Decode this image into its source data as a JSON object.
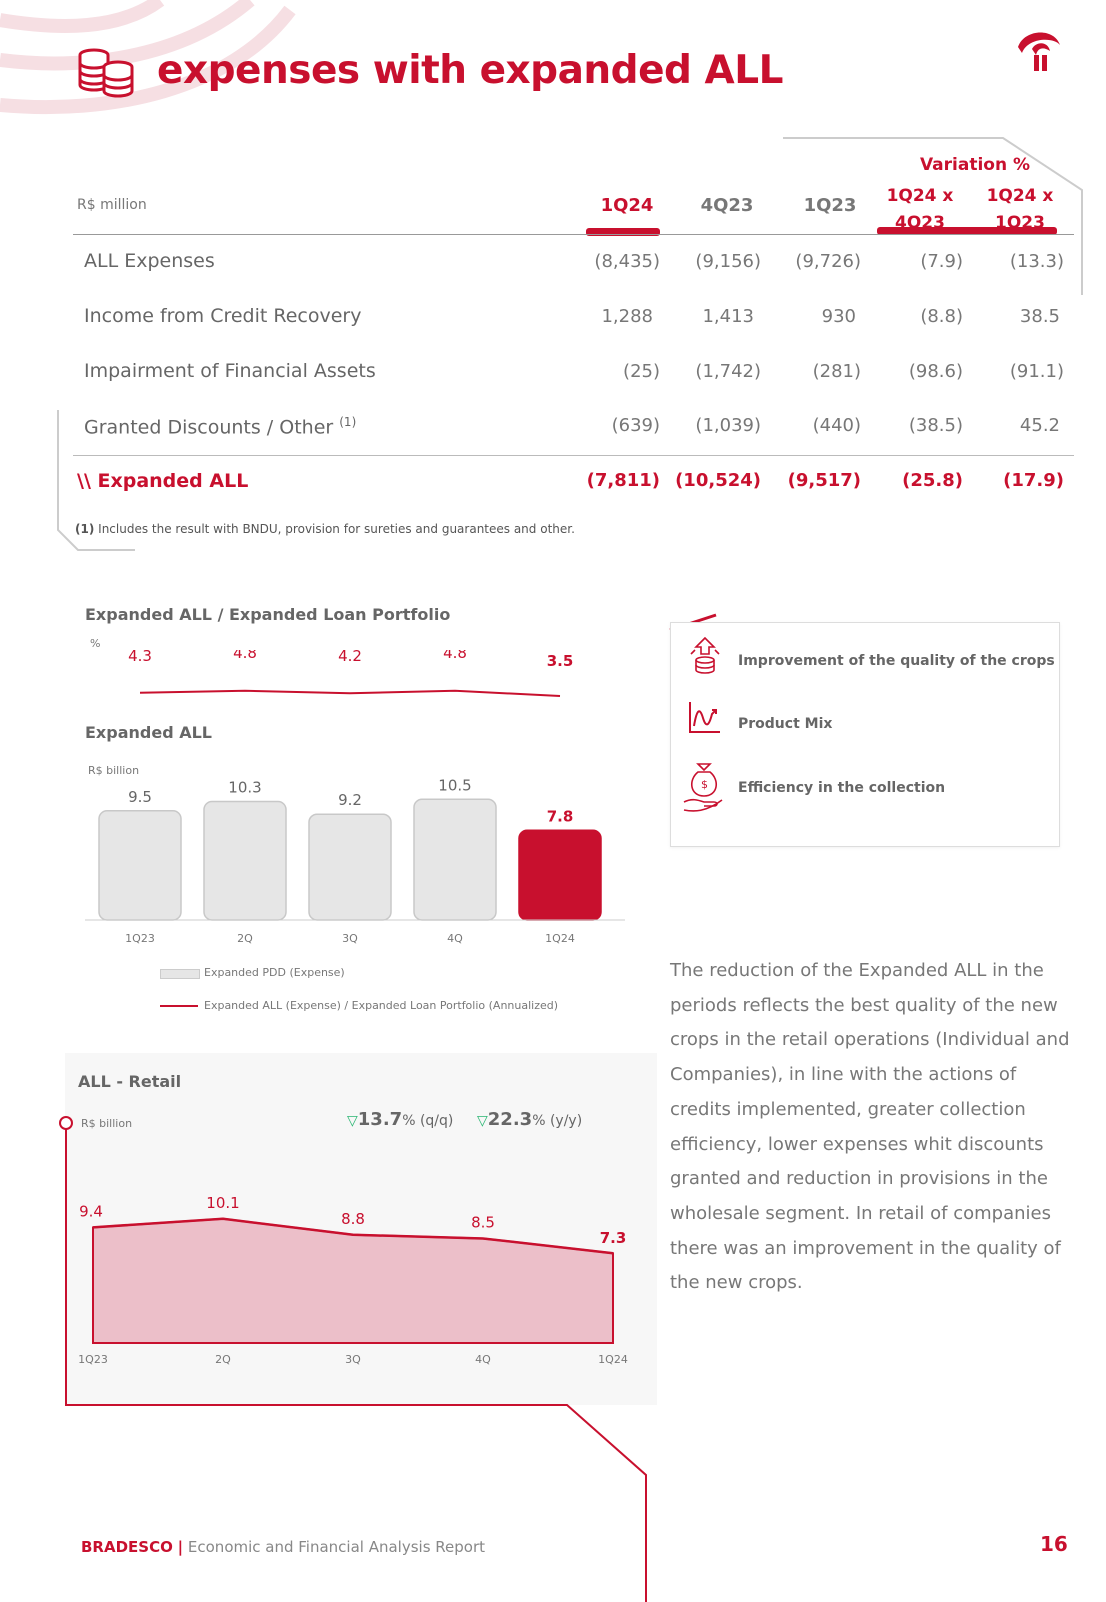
{
  "header": {
    "title": "expenses with expanded ALL"
  },
  "table": {
    "unit": "R$ million",
    "columns": [
      "1Q24",
      "4Q23",
      "1Q23"
    ],
    "variation_title": "Variation %",
    "variation_columns": [
      "1Q24 x 4Q23",
      "1Q24 x 1Q23"
    ],
    "variation_columns_lines": [
      [
        "1Q24 x",
        "4Q23"
      ],
      [
        "1Q24 x",
        "1Q23"
      ]
    ],
    "rows": [
      {
        "label": "ALL Expenses",
        "values": [
          "(8,435)",
          "(9,156)",
          "(9,726)",
          "(7.9)",
          "(13.3)"
        ]
      },
      {
        "label": "Income from Credit Recovery",
        "values": [
          "1,288",
          "1,413",
          "930",
          "(8.8)",
          "38.5"
        ]
      },
      {
        "label": "Impairment of Financial Assets",
        "values": [
          "(25)",
          "(1,742)",
          "(281)",
          "(98.6)",
          "(91.1)"
        ]
      },
      {
        "label": "Granted Discounts / Other",
        "note": "(1)",
        "values": [
          "(639)",
          "(1,039)",
          "(440)",
          "(38.5)",
          "45.2"
        ]
      }
    ],
    "total": {
      "label": "\\\\ Expanded ALL",
      "values": [
        "(7,811)",
        "(10,524)",
        "(9,517)",
        "(25.8)",
        "(17.9)"
      ]
    },
    "footnote_marker": "(1)",
    "footnote": "Includes the result with BNDU, provision for sureties and guarantees and other."
  },
  "chart_data": [
    {
      "type": "line",
      "title": "Expanded ALL / Expanded Loan Portfolio",
      "unit": "%",
      "categories": [
        "1Q23",
        "2Q",
        "3Q",
        "4Q",
        "1Q24"
      ],
      "values": [
        4.3,
        4.8,
        4.2,
        4.8,
        3.5
      ],
      "value_labels": [
        "4.3",
        "4.8",
        "4.2",
        "4.8",
        "3.5"
      ]
    },
    {
      "type": "bar",
      "title": "Expanded ALL",
      "unit": "R$ billion",
      "categories": [
        "1Q23",
        "2Q",
        "3Q",
        "4Q",
        "1Q24"
      ],
      "values": [
        9.5,
        10.3,
        9.2,
        10.5,
        7.8
      ],
      "value_labels": [
        "9.5",
        "10.3",
        "9.2",
        "10.5",
        "7.8"
      ],
      "legend": [
        "Expanded PDD (Expense)",
        "Expanded ALL (Expense) / Expanded Loan Portfolio (Annualized)"
      ]
    },
    {
      "type": "area",
      "title": "ALL - Retail",
      "unit": "R$ billion",
      "categories": [
        "1Q23",
        "2Q",
        "3Q",
        "4Q",
        "1Q24"
      ],
      "values": [
        9.4,
        10.1,
        8.8,
        8.5,
        7.3
      ],
      "value_labels": [
        "9.4",
        "10.1",
        "8.8",
        "8.5",
        "7.3"
      ],
      "variation_qq": "13.7",
      "variation_qq_suffix": "% (q/q)",
      "variation_yy": "22.3",
      "variation_yy_suffix": "% (y/y)"
    }
  ],
  "panel": {
    "items": [
      {
        "icon": "arrow-coins-icon",
        "label": "Improvement of the quality of the crops"
      },
      {
        "icon": "chart-wave-icon",
        "label": "Product Mix"
      },
      {
        "icon": "money-bag-hand-icon",
        "label": "Efficiency in the collection"
      }
    ]
  },
  "paragraph": "The reduction of the Expanded ALL in the periods reflects the best quality of the new crops in the retail operations (Individual and Companies), in line with the actions of credits implemented, greater collection efficiency, lower expenses whit discounts granted and reduction in provisions in the wholesale segment. In retail of companies there was an improvement in the quality of the new crops.",
  "footer": {
    "brand": "BRADESCO",
    "separator": "|",
    "report": "Economic and Financial Analysis Report",
    "page": "16"
  },
  "colors": {
    "accent": "#c8102e",
    "bar_grey": "#e6e6e6",
    "area_fill": "#ecbfc9"
  }
}
